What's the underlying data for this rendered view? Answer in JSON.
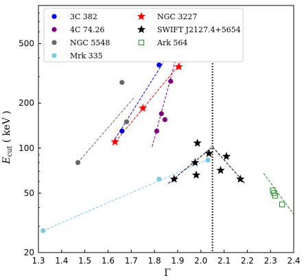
{
  "chart_data": {
    "type": "scatter",
    "xlabel": "Γ",
    "ylabel_main": "E",
    "ylabel_sub": "cut",
    "ylabel_unit": " ( keV )",
    "xlim": [
      1.3,
      2.4
    ],
    "ylim": [
      20,
      900
    ],
    "yscale": "log",
    "xticks": [
      1.3,
      1.4,
      1.5,
      1.6,
      1.7,
      1.8,
      1.9,
      2.0,
      2.1,
      2.2,
      2.3,
      2.4
    ],
    "xtick_labels": [
      "1.3",
      "1.4",
      "1.5",
      "1.6",
      "1.7",
      "1.8",
      "1.9",
      "2.0",
      "2.1",
      "2.2",
      "2.3",
      "2.4"
    ],
    "yticks": [
      20,
      50,
      100,
      200,
      500
    ],
    "ytick_labels": [
      "20",
      "50",
      "100",
      "200",
      "500"
    ],
    "legend_placement": "top-left",
    "vline_x": 2.05,
    "series": [
      {
        "name": "3C 382",
        "marker": "circle",
        "color": "#0000dd",
        "points": [
          [
            1.66,
            130
          ],
          [
            1.82,
            360
          ]
        ],
        "fit": [
          [
            1.63,
            115
          ],
          [
            1.85,
            400
          ]
        ]
      },
      {
        "name": "4C 74.26",
        "marker": "circle",
        "color": "#800080",
        "points": [
          [
            1.87,
            280
          ],
          [
            1.83,
            170
          ],
          [
            1.81,
            130
          ],
          [
            1.845,
            155
          ]
        ],
        "fit": [
          [
            1.79,
            102
          ],
          [
            1.895,
            410
          ]
        ]
      },
      {
        "name": "NGC 5548",
        "marker": "circle",
        "color": "#666666",
        "points": [
          [
            1.47,
            80
          ],
          [
            1.66,
            275
          ],
          [
            1.68,
            150
          ]
        ],
        "fit": [
          [
            1.47,
            80
          ],
          [
            1.715,
            220
          ]
        ]
      },
      {
        "name": "Mrk 335",
        "marker": "circle",
        "color": "#7ec8e3",
        "points": [
          [
            1.32,
            28
          ],
          [
            1.82,
            62
          ],
          [
            2.03,
            83
          ]
        ],
        "fit": [
          [
            1.32,
            28
          ],
          [
            2.04,
            85
          ]
        ]
      },
      {
        "name": "NGC 3227",
        "marker": "star",
        "color": "#ff0000",
        "points": [
          [
            1.63,
            110
          ],
          [
            1.75,
            185
          ],
          [
            1.905,
            350
          ]
        ],
        "fit": [
          [
            1.62,
            105
          ],
          [
            1.93,
            400
          ]
        ]
      },
      {
        "name": "SWIFT J2127.4+5654",
        "marker": "star",
        "color": "#000000",
        "points": [
          [
            1.885,
            62
          ],
          [
            1.975,
            80
          ],
          [
            1.985,
            108
          ],
          [
            1.98,
            66
          ],
          [
            2.035,
            92
          ],
          [
            2.085,
            71
          ],
          [
            2.11,
            88
          ],
          [
            2.17,
            62
          ]
        ],
        "fit": [
          [
            1.86,
            58
          ],
          [
            2.05,
            102
          ],
          [
            2.19,
            58
          ]
        ]
      },
      {
        "name": "Ark 564",
        "marker": "open-square",
        "color": "#228b22",
        "points": [
          [
            2.31,
            52
          ],
          [
            2.32,
            48
          ],
          [
            2.35,
            42
          ],
          [
            2.315,
            50
          ]
        ],
        "fit": [
          [
            2.27,
            68
          ],
          [
            2.4,
            36
          ]
        ]
      }
    ]
  }
}
